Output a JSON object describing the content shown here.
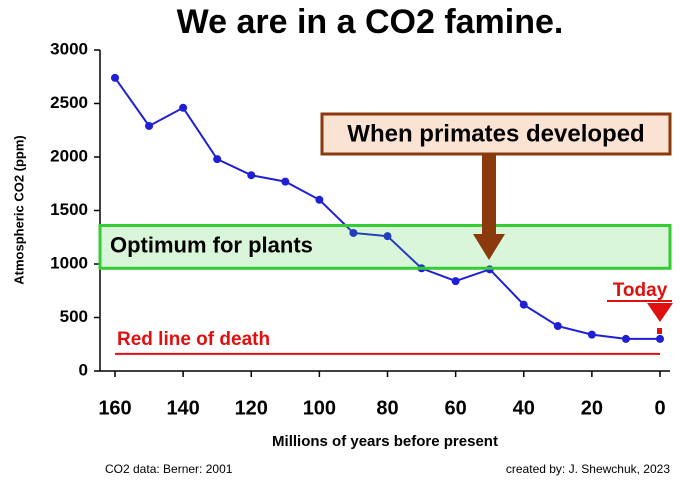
{
  "chart_data": {
    "type": "line",
    "title": "We are in a CO2 famine.",
    "x_label": "Millions of years before present",
    "y_label": "Atmospheric CO2 (ppm)",
    "x": [
      160,
      150,
      140,
      130,
      120,
      110,
      100,
      90,
      80,
      70,
      60,
      50,
      40,
      30,
      20,
      10,
      0
    ],
    "series": [
      {
        "color": "#1f1fd6",
        "values": [
          2740,
          2290,
          2460,
          1980,
          1830,
          1770,
          1600,
          1290,
          1260,
          960,
          840,
          950,
          620,
          420,
          340,
          300,
          300
        ]
      }
    ],
    "xlim": [
      160,
      0
    ],
    "xticks": [
      160,
      140,
      120,
      100,
      80,
      60,
      40,
      20,
      0
    ],
    "ylim": [
      0,
      3000
    ],
    "yticks": [
      0,
      500,
      1000,
      1500,
      2000,
      2500,
      3000
    ],
    "band": {
      "label": "Optimum for plants",
      "range": [
        960,
        1360
      ],
      "color": "#33cc33"
    },
    "red_line": {
      "label": "Red line of death",
      "value": 160,
      "color": "#e01010"
    },
    "annotations": [
      "When primates developed",
      "Today"
    ],
    "footer": {
      "left": "CO2 data: Berner: 2001",
      "right": "created by: J. Shewchuk, 2023"
    }
  }
}
